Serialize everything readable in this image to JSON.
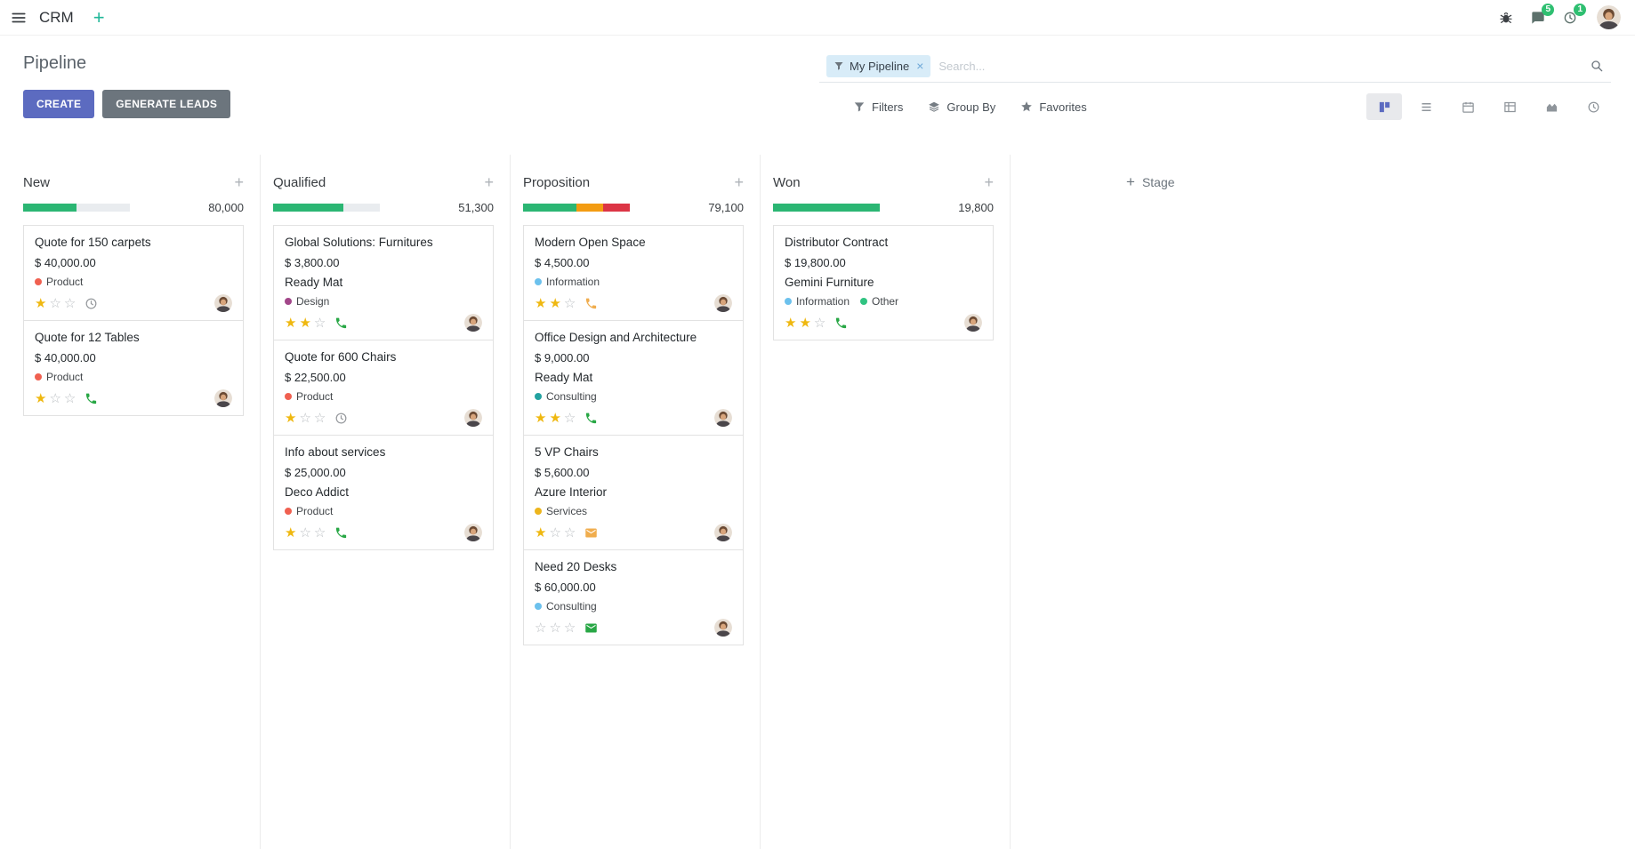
{
  "icons": {
    "plus": "+",
    "close": "×"
  },
  "navbar": {
    "app_name": "CRM",
    "message_badge": "5",
    "activity_badge": "1"
  },
  "control_panel": {
    "title": "Pipeline",
    "buttons": {
      "create": "CREATE",
      "generate_leads": "GENERATE LEADS"
    },
    "search": {
      "facet_label": "My Pipeline",
      "placeholder": "Search..."
    },
    "menus": {
      "filters": "Filters",
      "group_by": "Group By",
      "favorites": "Favorites"
    }
  },
  "board": {
    "add_stage_label": "Stage",
    "columns": [
      {
        "name": "New",
        "total": "80,000",
        "progress": [
          {
            "color": "#2bb673",
            "pct": 50
          }
        ],
        "cards": [
          {
            "title": "Quote for 150 carpets",
            "amount": "$ 40,000.00",
            "tags": [
              {
                "label": "Product",
                "color": "#f06050"
              }
            ],
            "stars": 1,
            "activity": {
              "type": "clock",
              "color": "#979a9e"
            }
          },
          {
            "title": "Quote for 12 Tables",
            "amount": "$ 40,000.00",
            "tags": [
              {
                "label": "Product",
                "color": "#f06050"
              }
            ],
            "stars": 1,
            "activity": {
              "type": "phone",
              "color": "#28a745"
            }
          }
        ]
      },
      {
        "name": "Qualified",
        "total": "51,300",
        "progress": [
          {
            "color": "#2bb673",
            "pct": 66
          }
        ],
        "cards": [
          {
            "title": "Global Solutions: Furnitures",
            "amount": "$ 3,800.00",
            "company": "Ready Mat",
            "tags": [
              {
                "label": "Design",
                "color": "#a24689"
              }
            ],
            "stars": 2,
            "activity": {
              "type": "phone",
              "color": "#28a745"
            }
          },
          {
            "title": "Quote for 600 Chairs",
            "amount": "$ 22,500.00",
            "tags": [
              {
                "label": "Product",
                "color": "#f06050"
              }
            ],
            "stars": 1,
            "activity": {
              "type": "clock",
              "color": "#979a9e"
            }
          },
          {
            "title": "Info about services",
            "amount": "$ 25,000.00",
            "company": "Deco Addict",
            "tags": [
              {
                "label": "Product",
                "color": "#f06050"
              }
            ],
            "stars": 1,
            "activity": {
              "type": "phone",
              "color": "#28a745"
            }
          }
        ]
      },
      {
        "name": "Proposition",
        "total": "79,100",
        "progress": [
          {
            "color": "#2bb673",
            "pct": 50
          },
          {
            "color": "#f39c12",
            "pct": 25
          },
          {
            "color": "#dc3545",
            "pct": 25
          }
        ],
        "cards": [
          {
            "title": "Modern Open Space",
            "amount": "$ 4,500.00",
            "tags": [
              {
                "label": "Information",
                "color": "#6cc1ed"
              }
            ],
            "stars": 2,
            "activity": {
              "type": "phone",
              "color": "#f0ad4e"
            }
          },
          {
            "title": "Office Design and Architecture",
            "amount": "$ 9,000.00",
            "company": "Ready Mat",
            "tags": [
              {
                "label": "Consulting",
                "color": "#23a2a0"
              }
            ],
            "stars": 2,
            "activity": {
              "type": "phone",
              "color": "#28a745"
            }
          },
          {
            "title": "5 VP Chairs",
            "amount": "$ 5,600.00",
            "company": "Azure Interior",
            "tags": [
              {
                "label": "Services",
                "color": "#edb51c"
              }
            ],
            "stars": 1,
            "activity": {
              "type": "envelope",
              "color": "#f0ad4e"
            }
          },
          {
            "title": "Need 20 Desks",
            "amount": "$ 60,000.00",
            "tags": [
              {
                "label": "Consulting",
                "color": "#6cc1ed"
              }
            ],
            "stars": 0,
            "activity": {
              "type": "envelope",
              "color": "#28a745"
            }
          }
        ]
      },
      {
        "name": "Won",
        "total": "19,800",
        "progress": [
          {
            "color": "#2bb673",
            "pct": 100
          }
        ],
        "cards": [
          {
            "title": "Distributor Contract",
            "amount": "$ 19,800.00",
            "company": "Gemini Furniture",
            "tags": [
              {
                "label": "Information",
                "color": "#6cc1ed"
              },
              {
                "label": "Other",
                "color": "#30c381"
              }
            ],
            "stars": 2,
            "activity": {
              "type": "phone",
              "color": "#28a745"
            }
          }
        ]
      }
    ]
  }
}
